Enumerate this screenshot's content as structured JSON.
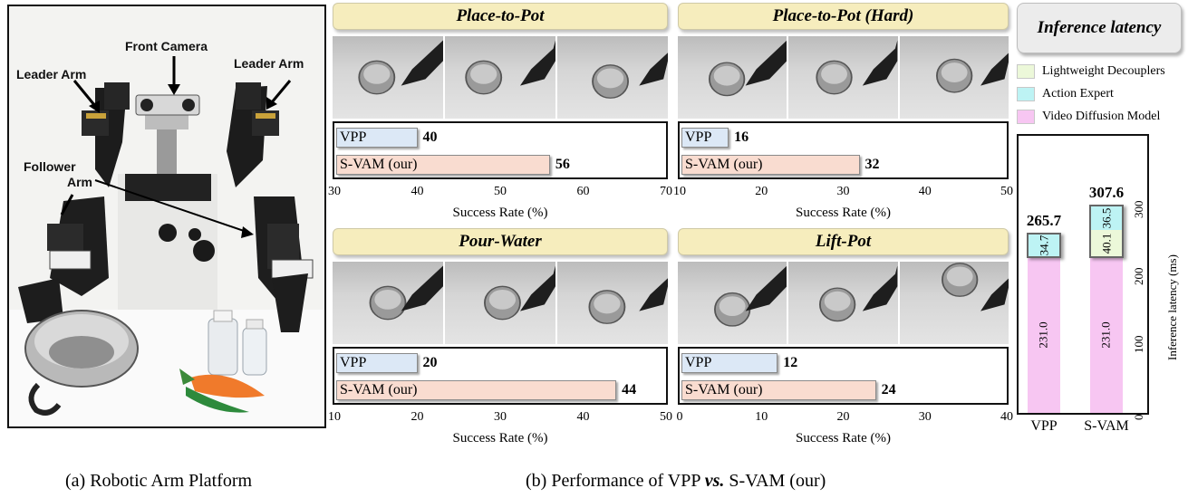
{
  "panel_a": {
    "labels": {
      "front_camera": "Front Camera",
      "leader_arm_left": "Leader Arm",
      "leader_arm_right": "Leader Arm",
      "follower_arm_line1": "Follower",
      "follower_arm_line2": "Arm"
    },
    "caption": "(a) Robotic Arm Platform"
  },
  "panel_b": {
    "caption_prefix": "(b) Performance of VPP ",
    "caption_vs": "vs.",
    "caption_suffix": " S-VAM (our)"
  },
  "chart_data": [
    {
      "type": "bar",
      "title": "Place-to-Pot",
      "orientation": "horizontal",
      "categories": [
        "VPP",
        "S-VAM (our)"
      ],
      "values": [
        40,
        56
      ],
      "xlabel": "Success Rate (%)",
      "xlim": [
        30,
        70
      ],
      "xticks": [
        "30",
        "40",
        "50",
        "60",
        "70"
      ]
    },
    {
      "type": "bar",
      "title": "Place-to-Pot (Hard)",
      "orientation": "horizontal",
      "categories": [
        "VPP",
        "S-VAM (our)"
      ],
      "values": [
        16,
        32
      ],
      "xlabel": "Success Rate (%)",
      "xlim": [
        10,
        50
      ],
      "xticks": [
        "10",
        "20",
        "30",
        "40",
        "50"
      ]
    },
    {
      "type": "bar",
      "title": "Pour-Water",
      "orientation": "horizontal",
      "categories": [
        "VPP",
        "S-VAM (our)"
      ],
      "values": [
        20,
        44
      ],
      "xlabel": "Success Rate (%)",
      "xlim": [
        10,
        50
      ],
      "xticks": [
        "10",
        "20",
        "30",
        "40",
        "50"
      ]
    },
    {
      "type": "bar",
      "title": "Lift-Pot",
      "orientation": "horizontal",
      "categories": [
        "VPP",
        "S-VAM (our)"
      ],
      "values": [
        12,
        24
      ],
      "xlabel": "Success Rate (%)",
      "xlim": [
        0,
        40
      ],
      "xticks": [
        "0",
        "10",
        "20",
        "30",
        "40"
      ]
    },
    {
      "type": "bar",
      "stacked": true,
      "title": "Inference latency",
      "categories": [
        "VPP",
        "S-VAM"
      ],
      "series": [
        {
          "name": "Video Diffusion Model",
          "values": [
            231.0,
            231.0
          ],
          "labels": [
            "231.0",
            "231.0"
          ],
          "color": "#f7c6f2"
        },
        {
          "name": "Lightweight Decouplers",
          "values": [
            0,
            40.1
          ],
          "labels": [
            "",
            "40.1"
          ],
          "color": "#ecf8d9"
        },
        {
          "name": "Action Expert",
          "values": [
            34.7,
            36.5
          ],
          "labels": [
            "34.7",
            "36.5"
          ],
          "color": "#bdf3f4"
        }
      ],
      "totals": [
        "265.7",
        "307.6"
      ],
      "legend_order": [
        "Lightweight Decouplers",
        "Action Expert",
        "Video Diffusion Model"
      ],
      "ylabel": "Inference latency (ms)",
      "ylim": [
        0,
        320
      ],
      "yticks": [
        "0",
        "100",
        "200",
        "300"
      ]
    }
  ]
}
